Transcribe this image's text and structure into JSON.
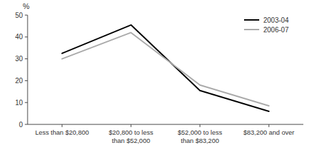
{
  "chart_data": {
    "type": "line",
    "y_label": "%",
    "categories": [
      "Less than $20,800",
      "$20,800 to less\nthan $52,000",
      "$52,000 to less\nthan $83,200",
      "$83,200 and over"
    ],
    "series": [
      {
        "name": "2003-04",
        "color": "#000000",
        "values": [
          32.5,
          45.5,
          15.5,
          6.0
        ]
      },
      {
        "name": "2006-07",
        "color": "#aaaaaa",
        "values": [
          30.0,
          42.0,
          18.0,
          8.5
        ]
      }
    ],
    "ylim": [
      0,
      50
    ],
    "yticks": [
      0,
      10,
      20,
      30,
      40,
      50
    ],
    "grid": false,
    "legend": "upper right"
  }
}
